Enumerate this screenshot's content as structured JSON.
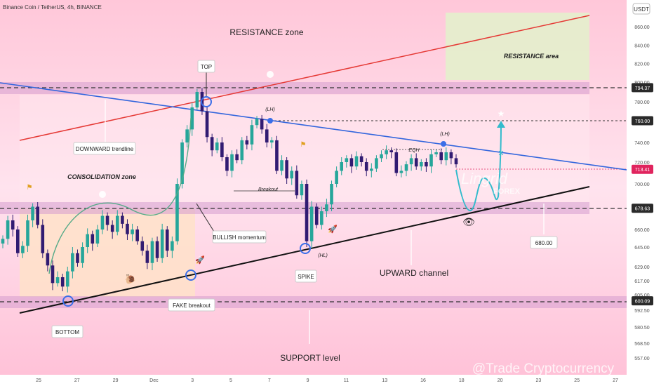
{
  "header": {
    "title": "Binance Coin / TetherUS, 4h, BINANCE"
  },
  "watermark": {
    "brand": "Lingrid",
    "sub": "FOREX",
    "credit": "@Trade Cryptocurrency"
  },
  "price_axis": {
    "currency": "USDT",
    "ticks": [
      {
        "value": 860,
        "label": "860.00"
      },
      {
        "value": 840,
        "label": "840.00"
      },
      {
        "value": 820,
        "label": "820.00"
      },
      {
        "value": 800,
        "label": "800.00"
      },
      {
        "value": 780,
        "label": "780.00"
      },
      {
        "value": 740,
        "label": "740.00"
      },
      {
        "value": 720,
        "label": "720.00"
      },
      {
        "value": 700,
        "label": "700.00"
      },
      {
        "value": 660,
        "label": "660.00"
      },
      {
        "value": 645,
        "label": "645.00"
      },
      {
        "value": 629,
        "label": "629.00"
      },
      {
        "value": 617,
        "label": "617.00"
      },
      {
        "value": 605,
        "label": "605.00"
      },
      {
        "value": 592.5,
        "label": "592.50"
      },
      {
        "value": 580.5,
        "label": "580.50"
      },
      {
        "value": 568.5,
        "label": "568.50"
      },
      {
        "value": 557,
        "label": "557.00"
      }
    ],
    "badges": [
      {
        "value": 794.37,
        "label": "794.37",
        "color": "#2a2a2a"
      },
      {
        "value": 760,
        "label": "760.00",
        "color": "#2a2a2a"
      },
      {
        "value": 713.41,
        "label": "713.41",
        "color": "#e0245e"
      },
      {
        "value": 678.63,
        "label": "678.63",
        "color": "#2a2a2a"
      },
      {
        "value": 600.09,
        "label": "600.09",
        "color": "#2a2a2a"
      }
    ]
  },
  "time_axis": {
    "labels": [
      "25",
      "27",
      "29",
      "Dec",
      "3",
      "5",
      "7",
      "9",
      "11",
      "13",
      "16",
      "18",
      "20",
      "23",
      "25",
      "27"
    ]
  },
  "annotations": {
    "resistance_zone": "RESISTANCE zone",
    "resistance_area": "RESISTANCE area",
    "downward_trendline": "DOWNWARD trendline",
    "consolidation_zone": "CONSOLIDATION zone",
    "top": "TOP",
    "lh1": "(LH)",
    "lh2": "(LH)",
    "hl": "(HL)",
    "eqh": "EQH",
    "breakout": "Breakout",
    "bullish_momentum": "BULLISH momentum",
    "bottom": "BOTTOM",
    "fake_breakout": "FAKE breakout",
    "spike": "SPIKE",
    "upward_channel": "UPWARD channel",
    "support_level": "SUPPORT level",
    "target_680": "680.00"
  },
  "colors": {
    "bull": "#26a69a",
    "bear": "#311b72",
    "resistance_line": "#e53935",
    "downtrend_line": "#3366dd",
    "support_line": "#111111",
    "projection": "#33bbcc",
    "price_badge": "#e0245e",
    "highlight_circle": "#3a6ee8"
  },
  "chart_data": {
    "type": "candlestick",
    "title": "Binance Coin / TetherUS, 4h, BINANCE",
    "y_unit": "USDT",
    "ylim": [
      555,
      875
    ],
    "x_ticks": [
      "25",
      "27",
      "29",
      "Dec",
      "3",
      "5",
      "7",
      "9",
      "11",
      "13",
      "16",
      "18",
      "20",
      "23",
      "25",
      "27"
    ],
    "series": [
      {
        "close_path": [
          652,
          668,
          660,
          640,
          646,
          668,
          680,
          664,
          640,
          630,
          615,
          620,
          612,
          625,
          640,
          632,
          645,
          656,
          648,
          660,
          672,
          664,
          658,
          672,
          665,
          656,
          660,
          650,
          642,
          632,
          650,
          636,
          660,
          642,
          650,
          700,
          740,
          752,
          774,
          790,
          770,
          745,
          732,
          740,
          725,
          712,
          728,
          722,
          742,
          738,
          756,
          762,
          752,
          740,
          742,
          712,
          722,
          705,
          712,
          690,
          700,
          650,
          680,
          664,
          676,
          682,
          700,
          712,
          720,
          724,
          716,
          726,
          720,
          712,
          714,
          724,
          728,
          732,
          730,
          710,
          712,
          718,
          724,
          716,
          720,
          716,
          728,
          730,
          722,
          730,
          724,
          718
        ]
      }
    ],
    "levels": [
      {
        "label": "794.37",
        "value": 794.37
      },
      {
        "label": "760.00",
        "value": 760
      },
      {
        "label": "713.41",
        "value": 713.41
      },
      {
        "label": "678.63",
        "value": 678.63
      },
      {
        "label": "600.09",
        "value": 600.09
      }
    ],
    "zones": [
      {
        "name": "RESISTANCE zone",
        "from": 787,
        "to": 800
      },
      {
        "name": "CONSOLIDATION zone",
        "from": 672,
        "to": 685
      },
      {
        "name": "SUPPORT level",
        "from": 592.5,
        "to": 605
      }
    ]
  }
}
